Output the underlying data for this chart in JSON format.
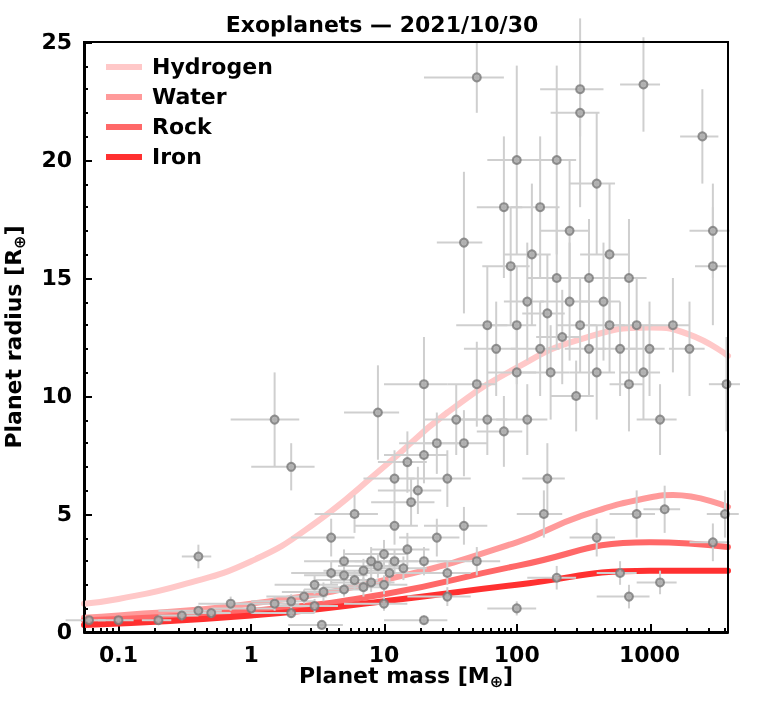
{
  "chart_data": {
    "type": "scatter",
    "title": "Exoplanets — 2021/10/30",
    "xlabel": "Planet mass [M$_{⊕}$]",
    "ylabel": "Planet radius [R$_{⊕}$]",
    "log": "x",
    "xlim": [
      0.055,
      3900
    ],
    "xticks": [
      0.1,
      1,
      10,
      100,
      1000
    ],
    "ylim": [
      0,
      25
    ],
    "yticks": [
      0,
      5,
      10,
      15,
      20,
      25
    ],
    "grid": false,
    "legend": "top left",
    "series": [
      {
        "marker": "circle",
        "color": "#7a7a7a",
        "x": [
          0.06,
          0.1,
          0.2,
          0.3,
          0.4,
          0.5,
          0.7,
          1,
          1.5,
          2,
          2,
          2.5,
          3,
          3,
          3.5,
          4,
          4,
          5,
          5,
          5,
          6,
          6,
          7,
          7,
          8,
          8,
          9,
          10,
          10,
          11,
          12,
          12,
          14,
          15,
          16,
          18,
          20,
          20,
          25,
          25,
          30,
          30,
          35,
          40,
          40,
          50,
          50,
          60,
          70,
          80,
          90,
          100,
          100,
          120,
          120,
          130,
          150,
          150,
          170,
          180,
          200,
          200,
          220,
          250,
          250,
          280,
          300,
          300,
          350,
          350,
          400,
          400,
          450,
          500,
          500,
          600,
          700,
          700,
          800,
          900,
          1000,
          1200,
          1500,
          2000,
          3000,
          3800,
          50,
          300,
          900,
          2500,
          3000,
          160,
          170,
          400,
          800,
          1300,
          700,
          200,
          1200,
          600,
          3000,
          3700,
          100,
          20,
          3.4,
          0.4,
          30,
          10,
          2,
          12,
          15,
          40,
          80,
          100,
          60,
          20,
          9,
          1.5
        ],
        "values": [
          0.5,
          0.5,
          0.5,
          0.7,
          3.2,
          0.8,
          1.2,
          1.0,
          1.2,
          7.0,
          1.3,
          1.5,
          2.0,
          1.1,
          1.7,
          2.5,
          4.0,
          1.8,
          3.0,
          2.4,
          2.2,
          5.0,
          2.6,
          1.9,
          3.0,
          2.1,
          2.8,
          3.3,
          2.0,
          2.5,
          4.5,
          3.0,
          2.7,
          3.5,
          5.5,
          6.0,
          3.0,
          7.5,
          4.0,
          8.0,
          6.5,
          2.5,
          9.0,
          8.0,
          4.5,
          10.5,
          3.0,
          9.0,
          12.0,
          8.5,
          15.5,
          11,
          13,
          14,
          9,
          16,
          12,
          18,
          13.5,
          11,
          15,
          20,
          12.5,
          14,
          17,
          10,
          13,
          22,
          15,
          12,
          11,
          19,
          14,
          13,
          16,
          12,
          10.5,
          15,
          13,
          11,
          12,
          9,
          13,
          12,
          15.5,
          10.5,
          23.5,
          23,
          23.2,
          21,
          17,
          5,
          6.5,
          4.0,
          5,
          5.2,
          1.5,
          2.3,
          2.1,
          2.5,
          3.8,
          5,
          1.0,
          0.5,
          0.3,
          0.9,
          1.5,
          1.2,
          0.8,
          6.5,
          7.2,
          16.5,
          18,
          20,
          13,
          10.5,
          9.3,
          9.0
        ],
        "errors": [
          0.1,
          0.1,
          0.1,
          0.2,
          0.5,
          0.2,
          0.3,
          0.2,
          0.3,
          1.0,
          0.3,
          0.3,
          0.4,
          0.3,
          0.4,
          0.5,
          0.8,
          0.3,
          0.5,
          0.4,
          0.4,
          0.8,
          0.5,
          0.4,
          0.6,
          0.4,
          0.5,
          0.6,
          0.4,
          0.5,
          0.8,
          0.5,
          0.5,
          0.7,
          1.0,
          1.0,
          0.6,
          1.2,
          0.8,
          1.3,
          1.2,
          0.5,
          1.5,
          1.4,
          0.8,
          1.8,
          0.6,
          1.5,
          2.0,
          1.5,
          2.5,
          2.0,
          2.5,
          2.5,
          1.5,
          3.0,
          2.0,
          3.0,
          2.5,
          2.0,
          3.0,
          4.0,
          2.0,
          2.5,
          3.0,
          1.5,
          2.0,
          4.0,
          2.5,
          2.0,
          2.0,
          3.0,
          2.5,
          2.0,
          3.0,
          2.0,
          2.0,
          2.5,
          2.0,
          2.0,
          2.0,
          1.5,
          2.0,
          2.0,
          2.5,
          2.0,
          1.5,
          2.0,
          2.0,
          2.0,
          2.0,
          1.0,
          1.5,
          0.8,
          1.0,
          1.0,
          0.5,
          0.5,
          0.5,
          0.5,
          0.8,
          1.0,
          0.3,
          0.2,
          null,
          0.2,
          0.4,
          0.3,
          0.2,
          1.2,
          1.3,
          3.0,
          3.0,
          4.0,
          2.5,
          2.0,
          2.0,
          2.0
        ],
        "xerrors": [
          0.02,
          0.03,
          0.05,
          0.1,
          0.1,
          0.2,
          0.3,
          0.5,
          0.8,
          1.0,
          1.0,
          1.2,
          1.5,
          1.5,
          1.8,
          2.0,
          2.0,
          2.5,
          2.5,
          2.5,
          3,
          3,
          3.5,
          3.5,
          4,
          4,
          4.5,
          5,
          5,
          5,
          6,
          6,
          7,
          7,
          8,
          9,
          10,
          10,
          12,
          12,
          15,
          15,
          15,
          20,
          20,
          20,
          25,
          25,
          30,
          30,
          35,
          40,
          40,
          40,
          50,
          50,
          60,
          60,
          60,
          70,
          80,
          80,
          80,
          100,
          100,
          100,
          100,
          120,
          120,
          120,
          150,
          150,
          150,
          150,
          200,
          200,
          200,
          250,
          250,
          300,
          300,
          400,
          500,
          600,
          800,
          1000,
          30,
          150,
          300,
          800,
          1000,
          60,
          60,
          150,
          300,
          400,
          300,
          80,
          400,
          200,
          1000,
          1000,
          40,
          10,
          1.5,
          0.2,
          15,
          5,
          1.0,
          5,
          6,
          15,
          30,
          40,
          25,
          10,
          4,
          0.8
        ]
      },
      {
        "type": "line",
        "name": "Hydrogen",
        "color": "#ffc8c8",
        "x": [
          0.055,
          0.1,
          0.3,
          1,
          3,
          10,
          30,
          100,
          300,
          1000,
          2000,
          3900
        ],
        "values": [
          1.2,
          1.4,
          2.0,
          3.0,
          4.6,
          7.0,
          9.3,
          11.2,
          12.4,
          12.9,
          12.6,
          11.7
        ]
      },
      {
        "type": "line",
        "name": "Water",
        "color": "#ff9a9a",
        "x": [
          0.055,
          0.1,
          1,
          10,
          100,
          300,
          1000,
          1500,
          3900
        ],
        "values": [
          0.6,
          0.7,
          1.2,
          2.2,
          3.8,
          4.9,
          5.7,
          5.8,
          5.3
        ]
      },
      {
        "type": "line",
        "name": "Rock",
        "color": "#ff6868",
        "x": [
          0.055,
          1,
          10,
          100,
          1000,
          3900
        ],
        "values": [
          0.5,
          0.9,
          1.6,
          2.8,
          3.8,
          3.6
        ]
      },
      {
        "type": "line",
        "name": "Iron",
        "color": "#ff3030",
        "x": [
          0.055,
          1,
          10,
          100,
          1000,
          3900
        ],
        "values": [
          0.3,
          0.7,
          1.3,
          2.0,
          2.6,
          2.6
        ]
      }
    ]
  }
}
